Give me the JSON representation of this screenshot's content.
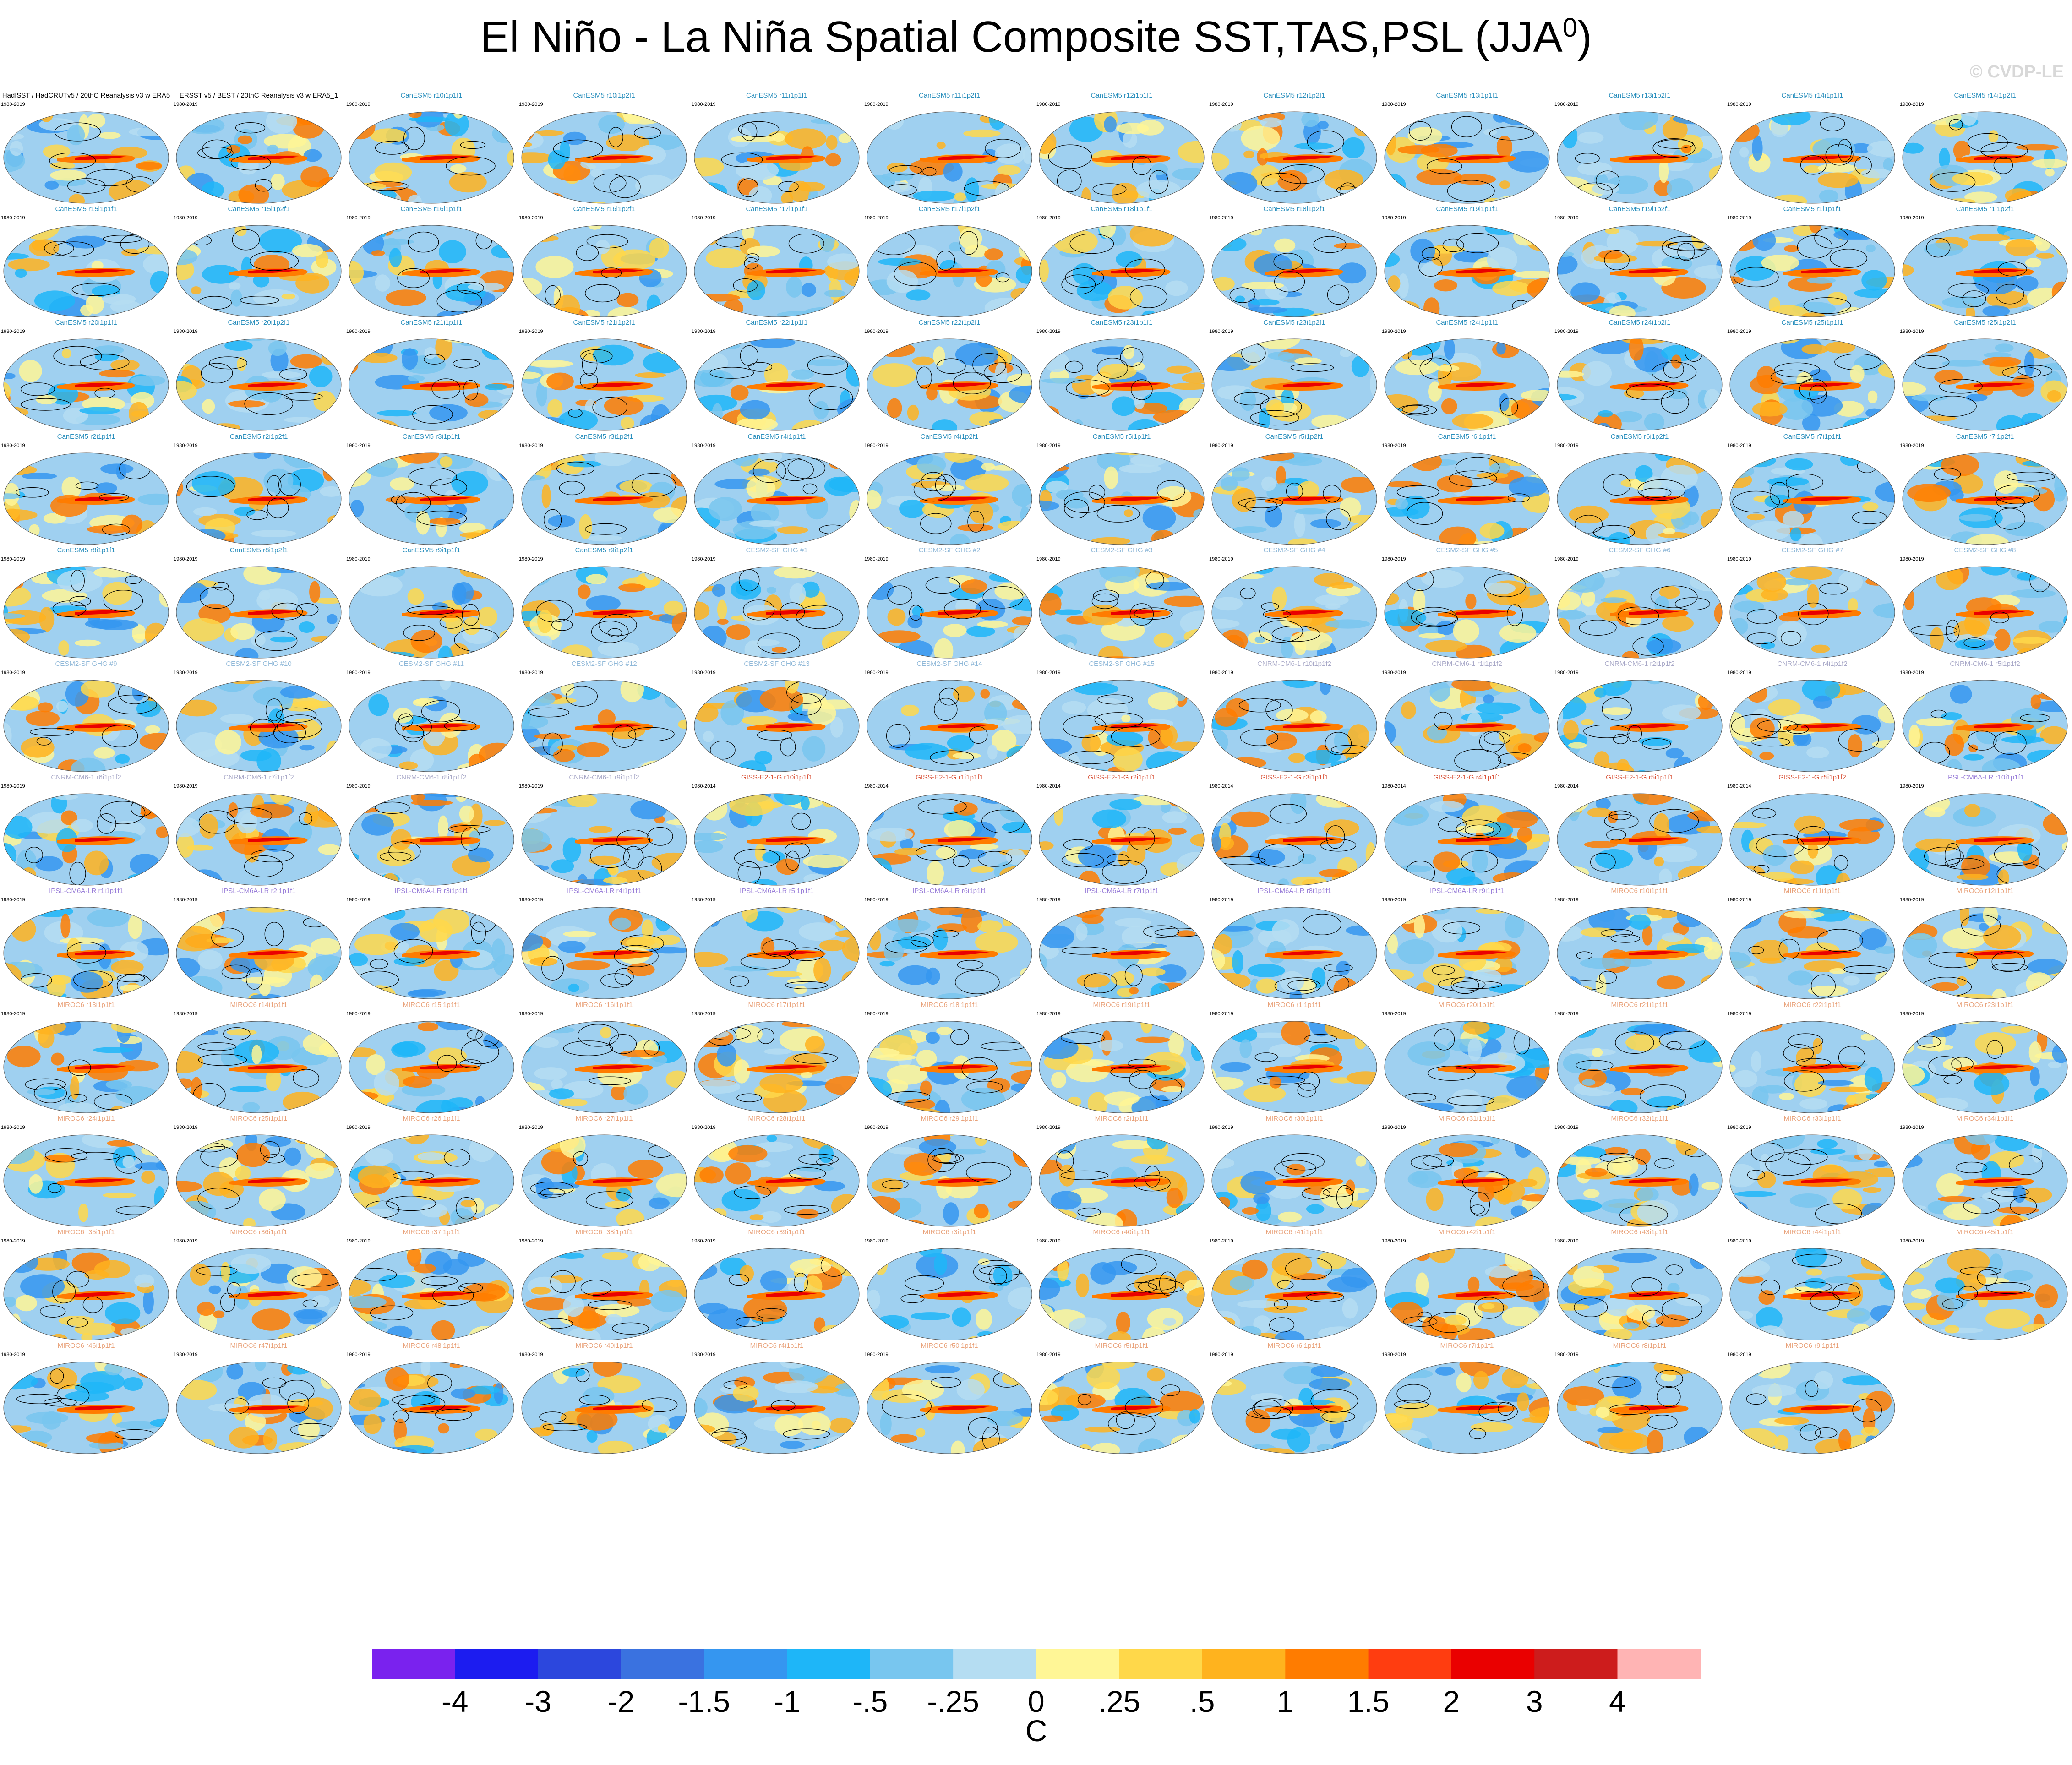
{
  "title": "El Niño - La Niña Spatial Composite SST,TAS,PSL (JJA",
  "title_superscript": "0",
  "title_suffix": ")",
  "credit": "© CVDP-LE",
  "icons": {
    "map": "world-map-icon"
  },
  "chart_data": {
    "type": "heatmap",
    "description_free": true,
    "panels": [
      {
        "title": "HadISST / HadCRUTv5 / 20thC Reanalysis v3 w ERA5",
        "years": "1980-2019",
        "color": "#000000"
      },
      {
        "title": "ERSST v5 / BEST / 20thC Reanalysis v3 w ERA5_1",
        "years": "1980-2019",
        "color": "#000000"
      },
      {
        "title": "CanESM5 r10i1p1f1",
        "years": "1980-2019",
        "color": "#2a8fbd"
      },
      {
        "title": "CanESM5 r10i1p2f1",
        "years": "1980-2019",
        "color": "#2a8fbd"
      },
      {
        "title": "CanESM5 r11i1p1f1",
        "years": "1980-2019",
        "color": "#2a8fbd"
      },
      {
        "title": "CanESM5 r11i1p2f1",
        "years": "1980-2019",
        "color": "#2a8fbd"
      },
      {
        "title": "CanESM5 r12i1p1f1",
        "years": "1980-2019",
        "color": "#2a8fbd"
      },
      {
        "title": "CanESM5 r12i1p2f1",
        "years": "1980-2019",
        "color": "#2a8fbd"
      },
      {
        "title": "CanESM5 r13i1p1f1",
        "years": "1980-2019",
        "color": "#2a8fbd"
      },
      {
        "title": "CanESM5 r13i1p2f1",
        "years": "1980-2019",
        "color": "#2a8fbd"
      },
      {
        "title": "CanESM5 r14i1p1f1",
        "years": "1980-2019",
        "color": "#2a8fbd"
      },
      {
        "title": "CanESM5 r14i1p2f1",
        "years": "1980-2019",
        "color": "#2a8fbd"
      },
      {
        "title": "CanESM5 r15i1p1f1",
        "years": "1980-2019",
        "color": "#2a8fbd"
      },
      {
        "title": "CanESM5 r15i1p2f1",
        "years": "1980-2019",
        "color": "#2a8fbd"
      },
      {
        "title": "CanESM5 r16i1p1f1",
        "years": "1980-2019",
        "color": "#2a8fbd"
      },
      {
        "title": "CanESM5 r16i1p2f1",
        "years": "1980-2019",
        "color": "#2a8fbd"
      },
      {
        "title": "CanESM5 r17i1p1f1",
        "years": "1980-2019",
        "color": "#2a8fbd"
      },
      {
        "title": "CanESM5 r17i1p2f1",
        "years": "1980-2019",
        "color": "#2a8fbd"
      },
      {
        "title": "CanESM5 r18i1p1f1",
        "years": "1980-2019",
        "color": "#2a8fbd"
      },
      {
        "title": "CanESM5 r18i1p2f1",
        "years": "1980-2019",
        "color": "#2a8fbd"
      },
      {
        "title": "CanESM5 r19i1p1f1",
        "years": "1980-2019",
        "color": "#2a8fbd"
      },
      {
        "title": "CanESM5 r19i1p2f1",
        "years": "1980-2019",
        "color": "#2a8fbd"
      },
      {
        "title": "CanESM5 r1i1p1f1",
        "years": "1980-2019",
        "color": "#2a8fbd"
      },
      {
        "title": "CanESM5 r1i1p2f1",
        "years": "1980-2019",
        "color": "#2a8fbd"
      },
      {
        "title": "CanESM5 r20i1p1f1",
        "years": "1980-2019",
        "color": "#2a8fbd"
      },
      {
        "title": "CanESM5 r20i1p2f1",
        "years": "1980-2019",
        "color": "#2a8fbd"
      },
      {
        "title": "CanESM5 r21i1p1f1",
        "years": "1980-2019",
        "color": "#2a8fbd"
      },
      {
        "title": "CanESM5 r21i1p2f1",
        "years": "1980-2019",
        "color": "#2a8fbd"
      },
      {
        "title": "CanESM5 r22i1p1f1",
        "years": "1980-2019",
        "color": "#2a8fbd"
      },
      {
        "title": "CanESM5 r22i1p2f1",
        "years": "1980-2019",
        "color": "#2a8fbd"
      },
      {
        "title": "CanESM5 r23i1p1f1",
        "years": "1980-2019",
        "color": "#2a8fbd"
      },
      {
        "title": "CanESM5 r23i1p2f1",
        "years": "1980-2019",
        "color": "#2a8fbd"
      },
      {
        "title": "CanESM5 r24i1p1f1",
        "years": "1980-2019",
        "color": "#2a8fbd"
      },
      {
        "title": "CanESM5 r24i1p2f1",
        "years": "1980-2019",
        "color": "#2a8fbd"
      },
      {
        "title": "CanESM5 r25i1p1f1",
        "years": "1980-2019",
        "color": "#2a8fbd"
      },
      {
        "title": "CanESM5 r25i1p2f1",
        "years": "1980-2019",
        "color": "#2a8fbd"
      },
      {
        "title": "CanESM5 r2i1p1f1",
        "years": "1980-2019",
        "color": "#2a8fbd"
      },
      {
        "title": "CanESM5 r2i1p2f1",
        "years": "1980-2019",
        "color": "#2a8fbd"
      },
      {
        "title": "CanESM5 r3i1p1f1",
        "years": "1980-2019",
        "color": "#2a8fbd"
      },
      {
        "title": "CanESM5 r3i1p2f1",
        "years": "1980-2019",
        "color": "#2a8fbd"
      },
      {
        "title": "CanESM5 r4i1p1f1",
        "years": "1980-2019",
        "color": "#2a8fbd"
      },
      {
        "title": "CanESM5 r4i1p2f1",
        "years": "1980-2019",
        "color": "#2a8fbd"
      },
      {
        "title": "CanESM5 r5i1p1f1",
        "years": "1980-2019",
        "color": "#2a8fbd"
      },
      {
        "title": "CanESM5 r5i1p2f1",
        "years": "1980-2019",
        "color": "#2a8fbd"
      },
      {
        "title": "CanESM5 r6i1p1f1",
        "years": "1980-2019",
        "color": "#2a8fbd"
      },
      {
        "title": "CanESM5 r6i1p2f1",
        "years": "1980-2019",
        "color": "#2a8fbd"
      },
      {
        "title": "CanESM5 r7i1p1f1",
        "years": "1980-2019",
        "color": "#2a8fbd"
      },
      {
        "title": "CanESM5 r7i1p2f1",
        "years": "1980-2019",
        "color": "#2a8fbd"
      },
      {
        "title": "CanESM5 r8i1p1f1",
        "years": "1980-2019",
        "color": "#2a8fbd"
      },
      {
        "title": "CanESM5 r8i1p2f1",
        "years": "1980-2019",
        "color": "#2a8fbd"
      },
      {
        "title": "CanESM5 r9i1p1f1",
        "years": "1980-2019",
        "color": "#2a8fbd"
      },
      {
        "title": "CanESM5 r9i1p2f1",
        "years": "1980-2019",
        "color": "#2a8fbd"
      },
      {
        "title": "CESM2-SF GHG #1",
        "years": "1980-2019",
        "color": "#8fb8d8"
      },
      {
        "title": "CESM2-SF GHG #2",
        "years": "1980-2019",
        "color": "#8fb8d8"
      },
      {
        "title": "CESM2-SF GHG #3",
        "years": "1980-2019",
        "color": "#8fb8d8"
      },
      {
        "title": "CESM2-SF GHG #4",
        "years": "1980-2019",
        "color": "#8fb8d8"
      },
      {
        "title": "CESM2-SF GHG #5",
        "years": "1980-2019",
        "color": "#8fb8d8"
      },
      {
        "title": "CESM2-SF GHG #6",
        "years": "1980-2019",
        "color": "#8fb8d8"
      },
      {
        "title": "CESM2-SF GHG #7",
        "years": "1980-2019",
        "color": "#8fb8d8"
      },
      {
        "title": "CESM2-SF GHG #8",
        "years": "1980-2019",
        "color": "#8fb8d8"
      },
      {
        "title": "CESM2-SF GHG #9",
        "years": "1980-2019",
        "color": "#8fb8d8"
      },
      {
        "title": "CESM2-SF GHG #10",
        "years": "1980-2019",
        "color": "#8fb8d8"
      },
      {
        "title": "CESM2-SF GHG #11",
        "years": "1980-2019",
        "color": "#8fb8d8"
      },
      {
        "title": "CESM2-SF GHG #12",
        "years": "1980-2019",
        "color": "#8fb8d8"
      },
      {
        "title": "CESM2-SF GHG #13",
        "years": "1980-2019",
        "color": "#8fb8d8"
      },
      {
        "title": "CESM2-SF GHG #14",
        "years": "1980-2019",
        "color": "#8fb8d8"
      },
      {
        "title": "CESM2-SF GHG #15",
        "years": "1980-2019",
        "color": "#8fb8d8"
      },
      {
        "title": "CNRM-CM6-1 r10i1p1f2",
        "years": "1980-2019",
        "color": "#a9a9c8"
      },
      {
        "title": "CNRM-CM6-1 r1i1p1f2",
        "years": "1980-2019",
        "color": "#a9a9c8"
      },
      {
        "title": "CNRM-CM6-1 r2i1p1f2",
        "years": "1980-2019",
        "color": "#a9a9c8"
      },
      {
        "title": "CNRM-CM6-1 r4i1p1f2",
        "years": "1980-2019",
        "color": "#a9a9c8"
      },
      {
        "title": "CNRM-CM6-1 r5i1p1f2",
        "years": "1980-2019",
        "color": "#a9a9c8"
      },
      {
        "title": "CNRM-CM6-1 r6i1p1f2",
        "years": "1980-2019",
        "color": "#a9a9c8"
      },
      {
        "title": "CNRM-CM6-1 r7i1p1f2",
        "years": "1980-2019",
        "color": "#a9a9c8"
      },
      {
        "title": "CNRM-CM6-1 r8i1p1f2",
        "years": "1980-2019",
        "color": "#a9a9c8"
      },
      {
        "title": "CNRM-CM6-1 r9i1p1f2",
        "years": "1980-2019",
        "color": "#a9a9c8"
      },
      {
        "title": "GISS-E2-1-G r10i1p1f1",
        "years": "1980-2014",
        "color": "#d9543a"
      },
      {
        "title": "GISS-E2-1-G r1i1p1f1",
        "years": "1980-2014",
        "color": "#d9543a"
      },
      {
        "title": "GISS-E2-1-G r2i1p1f1",
        "years": "1980-2014",
        "color": "#d9543a"
      },
      {
        "title": "GISS-E2-1-G r3i1p1f1",
        "years": "1980-2014",
        "color": "#d9543a"
      },
      {
        "title": "GISS-E2-1-G r4i1p1f1",
        "years": "1980-2014",
        "color": "#d9543a"
      },
      {
        "title": "GISS-E2-1-G r5i1p1f1",
        "years": "1980-2014",
        "color": "#d9543a"
      },
      {
        "title": "GISS-E2-1-G r5i1p1f2",
        "years": "1980-2014",
        "color": "#d9543a"
      },
      {
        "title": "IPSL-CM6A-LR r10i1p1f1",
        "years": "1980-2019",
        "color": "#9a7fd9"
      },
      {
        "title": "IPSL-CM6A-LR r1i1p1f1",
        "years": "1980-2019",
        "color": "#9a7fd9"
      },
      {
        "title": "IPSL-CM6A-LR r2i1p1f1",
        "years": "1980-2019",
        "color": "#9a7fd9"
      },
      {
        "title": "IPSL-CM6A-LR r3i1p1f1",
        "years": "1980-2019",
        "color": "#9a7fd9"
      },
      {
        "title": "IPSL-CM6A-LR r4i1p1f1",
        "years": "1980-2019",
        "color": "#9a7fd9"
      },
      {
        "title": "IPSL-CM6A-LR r5i1p1f1",
        "years": "1980-2019",
        "color": "#9a7fd9"
      },
      {
        "title": "IPSL-CM6A-LR r6i1p1f1",
        "years": "1980-2019",
        "color": "#9a7fd9"
      },
      {
        "title": "IPSL-CM6A-LR r7i1p1f1",
        "years": "1980-2019",
        "color": "#9a7fd9"
      },
      {
        "title": "IPSL-CM6A-LR r8i1p1f1",
        "years": "1980-2019",
        "color": "#9a7fd9"
      },
      {
        "title": "IPSL-CM6A-LR r9i1p1f1",
        "years": "1980-2019",
        "color": "#9a7fd9"
      },
      {
        "title": "MIROC6 r10i1p1f1",
        "years": "1980-2019",
        "color": "#e9a27a"
      },
      {
        "title": "MIROC6 r11i1p1f1",
        "years": "1980-2019",
        "color": "#e9a27a"
      },
      {
        "title": "MIROC6 r12i1p1f1",
        "years": "1980-2019",
        "color": "#e9a27a"
      },
      {
        "title": "MIROC6 r13i1p1f1",
        "years": "1980-2019",
        "color": "#e9a27a"
      },
      {
        "title": "MIROC6 r14i1p1f1",
        "years": "1980-2019",
        "color": "#e9a27a"
      },
      {
        "title": "MIROC6 r15i1p1f1",
        "years": "1980-2019",
        "color": "#e9a27a"
      },
      {
        "title": "MIROC6 r16i1p1f1",
        "years": "1980-2019",
        "color": "#e9a27a"
      },
      {
        "title": "MIROC6 r17i1p1f1",
        "years": "1980-2019",
        "color": "#e9a27a"
      },
      {
        "title": "MIROC6 r18i1p1f1",
        "years": "1980-2019",
        "color": "#e9a27a"
      },
      {
        "title": "MIROC6 r19i1p1f1",
        "years": "1980-2019",
        "color": "#e9a27a"
      },
      {
        "title": "MIROC6 r1i1p1f1",
        "years": "1980-2019",
        "color": "#e9a27a"
      },
      {
        "title": "MIROC6 r20i1p1f1",
        "years": "1980-2019",
        "color": "#e9a27a"
      },
      {
        "title": "MIROC6 r21i1p1f1",
        "years": "1980-2019",
        "color": "#e9a27a"
      },
      {
        "title": "MIROC6 r22i1p1f1",
        "years": "1980-2019",
        "color": "#e9a27a"
      },
      {
        "title": "MIROC6 r23i1p1f1",
        "years": "1980-2019",
        "color": "#e9a27a"
      },
      {
        "title": "MIROC6 r24i1p1f1",
        "years": "1980-2019",
        "color": "#e9a27a"
      },
      {
        "title": "MIROC6 r25i1p1f1",
        "years": "1980-2019",
        "color": "#e9a27a"
      },
      {
        "title": "MIROC6 r26i1p1f1",
        "years": "1980-2019",
        "color": "#e9a27a"
      },
      {
        "title": "MIROC6 r27i1p1f1",
        "years": "1980-2019",
        "color": "#e9a27a"
      },
      {
        "title": "MIROC6 r28i1p1f1",
        "years": "1980-2019",
        "color": "#e9a27a"
      },
      {
        "title": "MIROC6 r29i1p1f1",
        "years": "1980-2019",
        "color": "#e9a27a"
      },
      {
        "title": "MIROC6 r2i1p1f1",
        "years": "1980-2019",
        "color": "#e9a27a"
      },
      {
        "title": "MIROC6 r30i1p1f1",
        "years": "1980-2019",
        "color": "#e9a27a"
      },
      {
        "title": "MIROC6 r31i1p1f1",
        "years": "1980-2019",
        "color": "#e9a27a"
      },
      {
        "title": "MIROC6 r32i1p1f1",
        "years": "1980-2019",
        "color": "#e9a27a"
      },
      {
        "title": "MIROC6 r33i1p1f1",
        "years": "1980-2019",
        "color": "#e9a27a"
      },
      {
        "title": "MIROC6 r34i1p1f1",
        "years": "1980-2019",
        "color": "#e9a27a"
      },
      {
        "title": "MIROC6 r35i1p1f1",
        "years": "1980-2019",
        "color": "#e9a27a"
      },
      {
        "title": "MIROC6 r36i1p1f1",
        "years": "1980-2019",
        "color": "#e9a27a"
      },
      {
        "title": "MIROC6 r37i1p1f1",
        "years": "1980-2019",
        "color": "#e9a27a"
      },
      {
        "title": "MIROC6 r38i1p1f1",
        "years": "1980-2019",
        "color": "#e9a27a"
      },
      {
        "title": "MIROC6 r39i1p1f1",
        "years": "1980-2019",
        "color": "#e9a27a"
      },
      {
        "title": "MIROC6 r3i1p1f1",
        "years": "1980-2019",
        "color": "#e9a27a"
      },
      {
        "title": "MIROC6 r40i1p1f1",
        "years": "1980-2019",
        "color": "#e9a27a"
      },
      {
        "title": "MIROC6 r41i1p1f1",
        "years": "1980-2019",
        "color": "#e9a27a"
      },
      {
        "title": "MIROC6 r42i1p1f1",
        "years": "1980-2019",
        "color": "#e9a27a"
      },
      {
        "title": "MIROC6 r43i1p1f1",
        "years": "1980-2019",
        "color": "#e9a27a"
      },
      {
        "title": "MIROC6 r44i1p1f1",
        "years": "1980-2019",
        "color": "#e9a27a"
      },
      {
        "title": "MIROC6 r45i1p1f1",
        "years": "1980-2019",
        "color": "#e9a27a"
      },
      {
        "title": "MIROC6 r46i1p1f1",
        "years": "1980-2019",
        "color": "#e9a27a"
      },
      {
        "title": "MIROC6 r47i1p1f1",
        "years": "1980-2019",
        "color": "#e9a27a"
      },
      {
        "title": "MIROC6 r48i1p1f1",
        "years": "1980-2019",
        "color": "#e9a27a"
      },
      {
        "title": "MIROC6 r49i1p1f1",
        "years": "1980-2019",
        "color": "#e9a27a"
      },
      {
        "title": "MIROC6 r4i1p1f1",
        "years": "1980-2019",
        "color": "#e9a27a"
      },
      {
        "title": "MIROC6 r50i1p1f1",
        "years": "1980-2019",
        "color": "#e9a27a"
      },
      {
        "title": "MIROC6 r5i1p1f1",
        "years": "1980-2019",
        "color": "#e9a27a"
      },
      {
        "title": "MIROC6 r6i1p1f1",
        "years": "1980-2019",
        "color": "#e9a27a"
      },
      {
        "title": "MIROC6 r7i1p1f1",
        "years": "1980-2019",
        "color": "#e9a27a"
      },
      {
        "title": "MIROC6 r8i1p1f1",
        "years": "1980-2019",
        "color": "#e9a27a"
      },
      {
        "title": "MIROC6 r9i1p1f1",
        "years": "1980-2019",
        "color": "#e9a27a"
      }
    ],
    "colorbar": {
      "unit": "C",
      "tick_labels": [
        "-4",
        "-3",
        "-2",
        "-1.5",
        "-1",
        "-.5",
        "-.25",
        "0",
        ".25",
        ".5",
        "1",
        "1.5",
        "2",
        "3",
        "4"
      ],
      "colors": [
        "#7a22ee",
        "#1c1cf0",
        "#2c47dd",
        "#3a72e0",
        "#3596f0",
        "#1eb6f8",
        "#78c6ef",
        "#b5ddf2",
        "#fff696",
        "#ffd84a",
        "#ffb31e",
        "#ff7c00",
        "#ff3d10",
        "#ea0000",
        "#cd1c1c",
        "#ffb4b4"
      ]
    }
  }
}
